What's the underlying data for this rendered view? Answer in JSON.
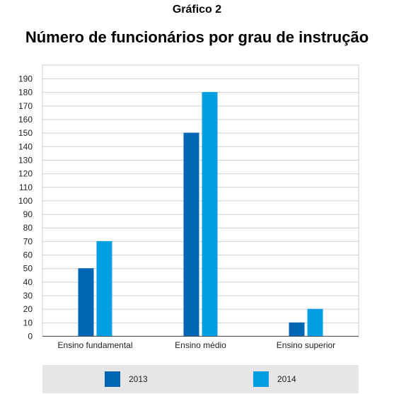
{
  "figure_label": "Gráfico 2",
  "chart_data": {
    "type": "bar",
    "title": "Número de funcionários por grau de instrução",
    "categories": [
      "Ensino fundamental",
      "Ensino médio",
      "Ensino superior"
    ],
    "series": [
      {
        "name": "2013",
        "values": [
          50,
          150,
          10
        ],
        "color": "#0066b3"
      },
      {
        "name": "2014",
        "values": [
          70,
          180,
          20
        ],
        "color": "#009fe3"
      }
    ],
    "yticks": [
      0,
      10,
      20,
      30,
      40,
      50,
      60,
      70,
      80,
      90,
      100,
      110,
      120,
      130,
      140,
      150,
      160,
      170,
      180,
      190
    ],
    "ylim": [
      0,
      190
    ],
    "grid": true,
    "legend_position": "bottom",
    "xlabel": "",
    "ylabel": ""
  }
}
